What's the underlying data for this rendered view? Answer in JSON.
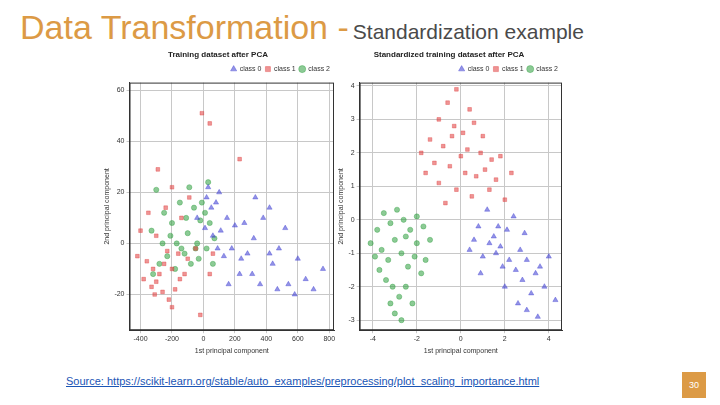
{
  "slide": {
    "title": "Data Transformation -",
    "subtitle": "Standardization example",
    "source": "Source: https://scikit-learn.org/stable/auto_examples/preprocessing/plot_scaling_importance.html",
    "page": 30
  },
  "chart_data": [
    {
      "type": "scatter",
      "title": "Training dataset after PCA",
      "x_label": "1st principal component",
      "y_label": "2nd principal component",
      "xlim": [
        -470,
        830
      ],
      "xticks": [
        -400,
        -200,
        0,
        200,
        400,
        600,
        800
      ],
      "ylim": [
        -34,
        63
      ],
      "yticks": [
        -20,
        0,
        20,
        40,
        60
      ],
      "grid": true,
      "legend": "upper right",
      "series": [
        {
          "name": "class 0",
          "color": "#3b3bd1",
          "marker": "triangle",
          "values": [
            [
              30,
              22
            ],
            [
              20,
              18
            ],
            [
              50,
              14
            ],
            [
              80,
              16
            ],
            [
              100,
              20
            ],
            [
              150,
              10
            ],
            [
              200,
              7
            ],
            [
              260,
              8
            ],
            [
              330,
              18
            ],
            [
              380,
              10
            ],
            [
              420,
              14
            ],
            [
              320,
              2
            ],
            [
              280,
              -4
            ],
            [
              240,
              -6
            ],
            [
              180,
              -2
            ],
            [
              130,
              -5
            ],
            [
              90,
              -2
            ],
            [
              60,
              3
            ],
            [
              110,
              5
            ],
            [
              230,
              -12
            ],
            [
              310,
              -12
            ],
            [
              360,
              -16
            ],
            [
              440,
              -8
            ],
            [
              480,
              -2
            ],
            [
              520,
              6
            ],
            [
              600,
              -6
            ],
            [
              650,
              -14
            ],
            [
              540,
              -16
            ],
            [
              470,
              -18
            ],
            [
              580,
              -20
            ],
            [
              700,
              -18
            ],
            [
              760,
              -10
            ],
            [
              420,
              -4
            ],
            [
              10,
              6
            ],
            [
              -40,
              10
            ],
            [
              160,
              -16
            ]
          ]
        },
        {
          "name": "class 1",
          "color": "#e03c3c",
          "marker": "square",
          "values": [
            [
              -10,
              51
            ],
            [
              40,
              47
            ],
            [
              230,
              33
            ],
            [
              -290,
              29
            ],
            [
              -200,
              22
            ],
            [
              -240,
              14
            ],
            [
              -350,
              12
            ],
            [
              -400,
              5
            ],
            [
              -300,
              3
            ],
            [
              -420,
              -5
            ],
            [
              -360,
              -7
            ],
            [
              -320,
              -10
            ],
            [
              -280,
              -12
            ],
            [
              -250,
              -8
            ],
            [
              -200,
              -10
            ],
            [
              -150,
              -14
            ],
            [
              -120,
              -12
            ],
            [
              -300,
              -15
            ],
            [
              -330,
              -17
            ],
            [
              -260,
              -19
            ],
            [
              -220,
              -22
            ],
            [
              -180,
              -18
            ],
            [
              -100,
              -6
            ],
            [
              -50,
              -2
            ],
            [
              -90,
              18
            ],
            [
              40,
              -12
            ],
            [
              -380,
              -14
            ],
            [
              -20,
              -28
            ],
            [
              60,
              -4
            ],
            [
              -160,
              -4
            ],
            [
              -230,
              -3
            ],
            [
              -140,
              10
            ],
            [
              -310,
              -20
            ],
            [
              -200,
              -25
            ]
          ]
        },
        {
          "name": "class 2",
          "color": "#2e9e3e",
          "marker": "circle",
          "values": [
            [
              -300,
              21
            ],
            [
              -250,
              12
            ],
            [
              -200,
              8
            ],
            [
              -150,
              16
            ],
            [
              -100,
              4
            ],
            [
              -60,
              14
            ],
            [
              -20,
              9
            ],
            [
              10,
              12
            ],
            [
              40,
              8
            ],
            [
              -50,
              -2
            ],
            [
              -120,
              -4
            ],
            [
              -170,
              0
            ],
            [
              -230,
              -5
            ],
            [
              -280,
              -8
            ],
            [
              -330,
              5
            ],
            [
              -180,
              -10
            ],
            [
              -80,
              -8
            ],
            [
              -30,
              -6
            ],
            [
              20,
              -2
            ],
            [
              -260,
              0
            ],
            [
              -140,
              -2
            ],
            [
              -90,
              22
            ],
            [
              70,
              2
            ],
            [
              -210,
              3
            ],
            [
              -110,
              10
            ],
            [
              -40,
              0
            ],
            [
              60,
              -8
            ],
            [
              -320,
              -12
            ],
            [
              -10,
              16
            ],
            [
              30,
              24
            ]
          ]
        }
      ]
    },
    {
      "type": "scatter",
      "title": "Standardized training dataset after PCA",
      "x_label": "1st principal component",
      "y_label": "2nd principal component",
      "xlim": [
        -4.6,
        4.6
      ],
      "xticks": [
        -4,
        -2,
        0,
        2,
        4
      ],
      "ylim": [
        -3.3,
        4.1
      ],
      "yticks": [
        -3,
        -2,
        -1,
        0,
        1,
        2,
        3,
        4
      ],
      "grid": true,
      "legend": "upper right",
      "series": [
        {
          "name": "class 0",
          "color": "#3b3bd1",
          "marker": "triangle",
          "values": [
            [
              0.8,
              -0.2
            ],
            [
              1.2,
              0.3
            ],
            [
              1.5,
              -0.5
            ],
            [
              1.8,
              -0.8
            ],
            [
              2.1,
              -0.3
            ],
            [
              2.4,
              0.1
            ],
            [
              2.7,
              -0.9
            ],
            [
              3.0,
              -1.2
            ],
            [
              3.4,
              -1.6
            ],
            [
              3.8,
              -2.0
            ],
            [
              4.0,
              -1.1
            ],
            [
              4.3,
              -2.4
            ],
            [
              3.5,
              -2.9
            ],
            [
              3.2,
              -2.2
            ],
            [
              2.8,
              -1.8
            ],
            [
              2.5,
              -1.5
            ],
            [
              2.2,
              -1.2
            ],
            [
              1.9,
              -1.4
            ],
            [
              1.6,
              -1.0
            ],
            [
              1.3,
              -0.7
            ],
            [
              1.0,
              -1.1
            ],
            [
              0.6,
              -0.6
            ],
            [
              0.9,
              -1.6
            ],
            [
              2.0,
              -2.0
            ],
            [
              2.6,
              -2.5
            ],
            [
              3.0,
              -2.7
            ],
            [
              1.7,
              -0.2
            ],
            [
              2.9,
              -0.4
            ],
            [
              0.4,
              -0.9
            ],
            [
              3.6,
              -1.4
            ]
          ]
        },
        {
          "name": "class 1",
          "color": "#e03c3c",
          "marker": "square",
          "values": [
            [
              -0.2,
              3.9
            ],
            [
              -0.6,
              3.5
            ],
            [
              0.4,
              3.3
            ],
            [
              -1.0,
              3.0
            ],
            [
              -0.3,
              2.8
            ],
            [
              0.1,
              2.6
            ],
            [
              0.6,
              2.9
            ],
            [
              1.0,
              2.5
            ],
            [
              -1.4,
              2.4
            ],
            [
              -0.8,
              2.2
            ],
            [
              0.3,
              2.1
            ],
            [
              0.9,
              2.0
            ],
            [
              1.4,
              1.8
            ],
            [
              -1.2,
              1.7
            ],
            [
              -0.5,
              1.6
            ],
            [
              0.2,
              1.4
            ],
            [
              0.7,
              1.3
            ],
            [
              1.1,
              1.5
            ],
            [
              1.6,
              1.2
            ],
            [
              -1.6,
              1.4
            ],
            [
              -1.0,
              1.1
            ],
            [
              -0.2,
              0.9
            ],
            [
              0.5,
              0.7
            ],
            [
              1.3,
              0.9
            ],
            [
              2.0,
              0.6
            ],
            [
              -0.7,
              0.5
            ],
            [
              1.8,
              1.9
            ],
            [
              -1.8,
              2.0
            ],
            [
              0.0,
              1.9
            ],
            [
              -0.4,
              2.5
            ],
            [
              2.3,
              1.4
            ]
          ]
        },
        {
          "name": "class 2",
          "color": "#2e9e3e",
          "marker": "circle",
          "values": [
            [
              -4.1,
              -0.7
            ],
            [
              -3.8,
              -0.3
            ],
            [
              -3.5,
              0.2
            ],
            [
              -3.2,
              -0.1
            ],
            [
              -2.9,
              0.3
            ],
            [
              -2.6,
              0.0
            ],
            [
              -2.3,
              -0.3
            ],
            [
              -2.0,
              0.1
            ],
            [
              -1.7,
              -0.2
            ],
            [
              -1.4,
              -0.6
            ],
            [
              -3.6,
              -0.9
            ],
            [
              -3.3,
              -1.2
            ],
            [
              -3.0,
              -0.6
            ],
            [
              -2.7,
              -1.0
            ],
            [
              -2.4,
              -1.4
            ],
            [
              -2.1,
              -1.1
            ],
            [
              -1.8,
              -1.6
            ],
            [
              -3.4,
              -1.8
            ],
            [
              -3.1,
              -2.0
            ],
            [
              -2.8,
              -2.3
            ],
            [
              -2.5,
              -2.0
            ],
            [
              -2.2,
              -2.5
            ],
            [
              -3.0,
              -2.8
            ],
            [
              -2.7,
              -3.0
            ],
            [
              -3.7,
              -1.5
            ],
            [
              -2.0,
              -0.7
            ],
            [
              -1.6,
              -1.2
            ],
            [
              -3.9,
              -1.1
            ],
            [
              -2.5,
              -0.5
            ],
            [
              -3.2,
              -2.5
            ]
          ]
        }
      ]
    }
  ]
}
